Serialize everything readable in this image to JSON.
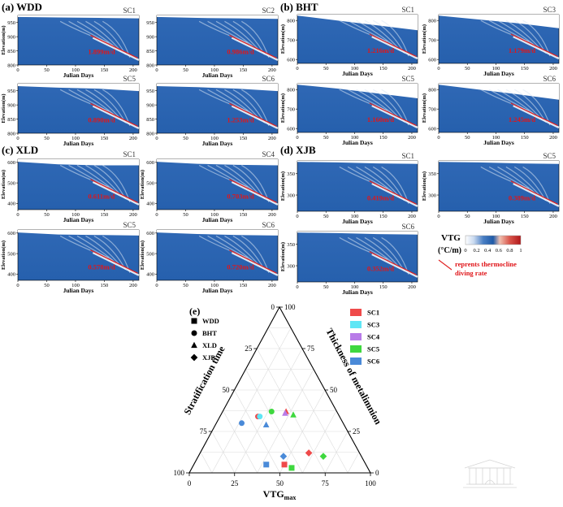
{
  "panels": [
    {
      "group_label": "(a) WDD",
      "sc": "SC1",
      "rate": "1.899m/d",
      "yticks": [
        800,
        850,
        900,
        950
      ],
      "ylim": [
        800,
        975
      ],
      "xlabel": "Julian Days",
      "ylabel": "Elevation(m)",
      "xticks": [
        0,
        50,
        100,
        150,
        200
      ],
      "xlim": [
        0,
        210
      ]
    },
    {
      "group_label": "",
      "sc": "SC2",
      "rate": "0.986m/d",
      "yticks": [
        800,
        850,
        900,
        950
      ],
      "ylim": [
        800,
        975
      ],
      "xlabel": "Julian Days",
      "ylabel": "",
      "xticks": [
        0,
        50,
        100,
        150,
        200
      ],
      "xlim": [
        0,
        210
      ]
    },
    {
      "group_label": "",
      "sc": "SC5",
      "rate": "0.890m/d",
      "yticks": [
        800,
        850,
        900,
        950
      ],
      "ylim": [
        800,
        975
      ],
      "xlabel": "Julian Days",
      "ylabel": "Elevation(m)",
      "xticks": [
        0,
        50,
        100,
        150,
        200
      ],
      "xlim": [
        0,
        210
      ]
    },
    {
      "group_label": "",
      "sc": "SC6",
      "rate": "1.253m/d",
      "yticks": [
        800,
        850,
        900,
        950
      ],
      "ylim": [
        800,
        975
      ],
      "xlabel": "Julian Days",
      "ylabel": "",
      "xticks": [
        0,
        50,
        100,
        150,
        200
      ],
      "xlim": [
        0,
        210
      ]
    },
    {
      "group_label": "(b) BHT",
      "sc": "SC1",
      "rate": "1.216m/d",
      "yticks": [
        600,
        700,
        800
      ],
      "ylim": [
        580,
        830
      ],
      "xlabel": "Julian Days",
      "ylabel": "Elevation(m)",
      "xticks": [
        0,
        50,
        100,
        150,
        200
      ],
      "xlim": [
        0,
        210
      ]
    },
    {
      "group_label": "",
      "sc": "SC3",
      "rate": "1.179m/d",
      "yticks": [
        600,
        700,
        800
      ],
      "ylim": [
        580,
        830
      ],
      "xlabel": "Julian Days",
      "ylabel": "Elevation(m)",
      "xticks": [
        0,
        50,
        100,
        150,
        200
      ],
      "xlim": [
        0,
        210
      ]
    },
    {
      "group_label": "",
      "sc": "SC5",
      "rate": "1.160m/d",
      "yticks": [
        600,
        700,
        800
      ],
      "ylim": [
        580,
        830
      ],
      "xlabel": "Julian Days",
      "ylabel": "Elevation(m)",
      "xticks": [
        0,
        50,
        100,
        150,
        200
      ],
      "xlim": [
        0,
        210
      ]
    },
    {
      "group_label": "",
      "sc": "SC6",
      "rate": "1.245m/d",
      "yticks": [
        600,
        700,
        800
      ],
      "ylim": [
        580,
        830
      ],
      "xlabel": "Julian Days",
      "ylabel": "Elevation(m)",
      "xticks": [
        0,
        50,
        100,
        150,
        200
      ],
      "xlim": [
        0,
        210
      ]
    },
    {
      "group_label": "(c) XLD",
      "sc": "SC1",
      "rate": "0.611m/d",
      "yticks": [
        400,
        500,
        600
      ],
      "ylim": [
        370,
        615
      ],
      "xlabel": "Julian Days",
      "ylabel": "Elevation(m)",
      "xticks": [
        0,
        50,
        100,
        150,
        200
      ],
      "xlim": [
        0,
        210
      ]
    },
    {
      "group_label": "",
      "sc": "SC4",
      "rate": "0.703m/d",
      "yticks": [
        400,
        500,
        600
      ],
      "ylim": [
        370,
        615
      ],
      "xlabel": "Julian Days",
      "ylabel": "Elevation(m)",
      "xticks": [
        0,
        50,
        100,
        150,
        200
      ],
      "xlim": [
        0,
        210
      ]
    },
    {
      "group_label": "",
      "sc": "SC5",
      "rate": "0.578m/d",
      "yticks": [
        400,
        500,
        600
      ],
      "ylim": [
        370,
        615
      ],
      "xlabel": "Julian Days",
      "ylabel": "Elevation(m)",
      "xticks": [
        0,
        50,
        100,
        150,
        200
      ],
      "xlim": [
        0,
        210
      ]
    },
    {
      "group_label": "",
      "sc": "SC6",
      "rate": "0.720m/d",
      "yticks": [
        400,
        500,
        600
      ],
      "ylim": [
        370,
        615
      ],
      "xlabel": "Julian Days",
      "ylabel": "Elevation(m)",
      "xticks": [
        0,
        50,
        100,
        150,
        200
      ],
      "xlim": [
        0,
        210
      ]
    },
    {
      "group_label": "(d) XJB",
      "sc": "SC1",
      "rate": "0.419m/d",
      "yticks": [
        300,
        350
      ],
      "ylim": [
        262,
        380
      ],
      "xlabel": "Julian Days",
      "ylabel": "Elevation(m)",
      "xticks": [
        0,
        50,
        100,
        150,
        200
      ],
      "xlim": [
        0,
        210
      ]
    },
    {
      "group_label": "",
      "sc": "SC5",
      "rate": "0.389m/d",
      "yticks": [
        300,
        350
      ],
      "ylim": [
        262,
        380
      ],
      "xlabel": "Julian Days",
      "ylabel": "Elevation(m)",
      "xticks": [
        0,
        50,
        100,
        150,
        200
      ],
      "xlim": [
        0,
        210
      ]
    },
    {
      "group_label": "",
      "sc": "SC6",
      "rate": "0.352m/d",
      "yticks": [
        300,
        350
      ],
      "ylim": [
        262,
        380
      ],
      "xlabel": "Julian Days",
      "ylabel": "Elevation(m)",
      "xticks": [
        0,
        50,
        100,
        150,
        200
      ],
      "xlim": [
        0,
        210
      ]
    }
  ],
  "vtg_legend": {
    "title": "VTG",
    "unit": "(°C/m)",
    "ticks": [
      "0",
      "0.2",
      "0.4",
      "0.6",
      "0.8",
      "1"
    ],
    "line_note": [
      "reprents thermocline",
      "diving rate"
    ],
    "colors": [
      "#ffffff",
      "#c9d9ef",
      "#4a7fc4",
      "#1e5aa8",
      "#f0c0b0",
      "#d9554a",
      "#b0171a"
    ]
  },
  "chart_data": {
    "type": "scatter",
    "subtype": "ternary",
    "panel_label": "(e)",
    "axes": {
      "bottom": {
        "label": "VTG",
        "label_sub": "max",
        "ticks": [
          0,
          25,
          50,
          75,
          100
        ]
      },
      "left": {
        "label": "Stratification time",
        "ticks": [
          100,
          75,
          50,
          25,
          0
        ]
      },
      "right": {
        "label": "Thickness of metalimnion",
        "ticks": [
          100,
          75,
          50,
          25,
          0
        ]
      }
    },
    "grid": true,
    "marker_legend": [
      {
        "label": "WDD",
        "marker": "square"
      },
      {
        "label": "BHT",
        "marker": "circle"
      },
      {
        "label": "XLD",
        "marker": "triangle"
      },
      {
        "label": "XJB",
        "marker": "diamond"
      }
    ],
    "color_legend": [
      {
        "label": "SC1",
        "color": "#ef4a4a"
      },
      {
        "label": "SC3",
        "color": "#5fe6f5"
      },
      {
        "label": "SC4",
        "color": "#b87be8"
      },
      {
        "label": "SC5",
        "color": "#3fd83f"
      },
      {
        "label": "SC6",
        "color": "#4a8ad8"
      }
    ],
    "points": [
      {
        "reservoir": "WDD",
        "scenario": "SC1",
        "vtg": 50,
        "strat": 45,
        "thick": 5
      },
      {
        "reservoir": "WDD",
        "scenario": "SC5",
        "vtg": 55,
        "strat": 42,
        "thick": 3
      },
      {
        "reservoir": "WDD",
        "scenario": "SC6",
        "vtg": 40,
        "strat": 55,
        "thick": 5
      },
      {
        "reservoir": "BHT",
        "scenario": "SC1",
        "vtg": 21,
        "strat": 45,
        "thick": 34
      },
      {
        "reservoir": "BHT",
        "scenario": "SC3",
        "vtg": 22,
        "strat": 44,
        "thick": 34
      },
      {
        "reservoir": "BHT",
        "scenario": "SC5",
        "vtg": 27,
        "strat": 36,
        "thick": 37
      },
      {
        "reservoir": "BHT",
        "scenario": "SC6",
        "vtg": 14,
        "strat": 56,
        "thick": 30
      },
      {
        "reservoir": "XLD",
        "scenario": "SC1",
        "vtg": 35,
        "strat": 28,
        "thick": 37
      },
      {
        "reservoir": "XLD",
        "scenario": "SC4",
        "vtg": 35,
        "strat": 29,
        "thick": 36
      },
      {
        "reservoir": "XLD",
        "scenario": "SC5",
        "vtg": 40,
        "strat": 25,
        "thick": 35
      },
      {
        "reservoir": "XLD",
        "scenario": "SC6",
        "vtg": 28,
        "strat": 43,
        "thick": 29
      },
      {
        "reservoir": "XJB",
        "scenario": "SC1",
        "vtg": 60,
        "strat": 28,
        "thick": 12
      },
      {
        "reservoir": "XJB",
        "scenario": "SC5",
        "vtg": 69,
        "strat": 21,
        "thick": 10
      },
      {
        "reservoir": "XJB",
        "scenario": "SC6",
        "vtg": 47,
        "strat": 43,
        "thick": 10
      }
    ]
  }
}
